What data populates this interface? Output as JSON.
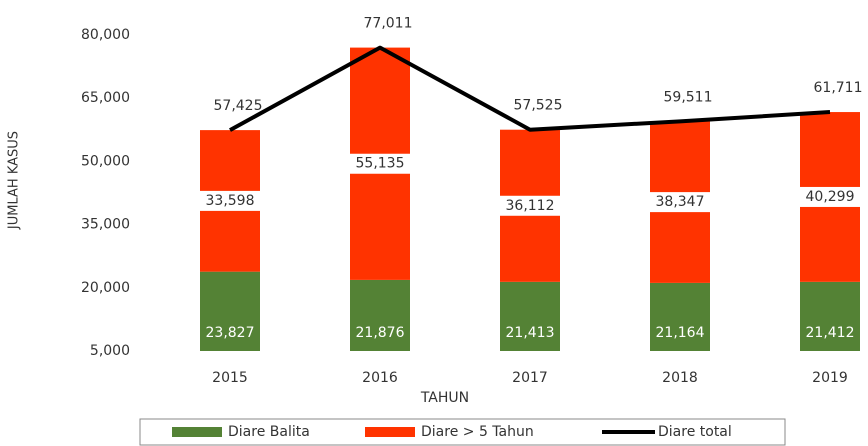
{
  "chart_data": {
    "type": "bar",
    "stacked": true,
    "x_label": "TAHUN",
    "y_label": "JUMLAH KASUS",
    "categories": [
      "2015",
      "2016",
      "2017",
      "2018",
      "2019"
    ],
    "series": [
      {
        "name": "Diare Balita",
        "color": "#548235",
        "values": [
          23827,
          21876,
          21413,
          21164,
          21412
        ],
        "value_labels": [
          "23,827",
          "21,876",
          "21,413",
          "21,164",
          "21,412"
        ]
      },
      {
        "name": "Diare > 5 Tahun",
        "color": "#ff3300",
        "values": [
          33598,
          55135,
          36112,
          38347,
          40299
        ],
        "value_labels": [
          "33,598",
          "55,135",
          "36,112",
          "38,347",
          "40,299"
        ]
      },
      {
        "name": "Diare total",
        "type": "line",
        "color": "#000000",
        "values": [
          57425,
          77011,
          57525,
          59511,
          61711
        ],
        "value_labels": [
          "57,425",
          "77,011",
          "57,525",
          "59,511",
          "61,711"
        ]
      }
    ],
    "ylim": [
      5000,
      80000
    ],
    "yticks": [
      {
        "value": 5000,
        "label": "5,000"
      },
      {
        "value": 20000,
        "label": "20,000"
      },
      {
        "value": 35000,
        "label": "35,000"
      },
      {
        "value": 50000,
        "label": "50,000"
      },
      {
        "value": 65000,
        "label": "65,000"
      },
      {
        "value": 80000,
        "label": "80,000"
      }
    ],
    "grid": false,
    "legend": "bottom"
  }
}
